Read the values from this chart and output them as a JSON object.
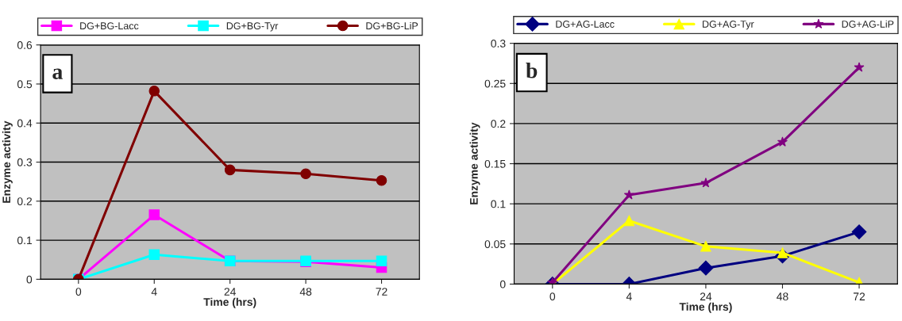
{
  "chart_data": [
    {
      "type": "line",
      "xlabel": "Time (hrs)",
      "ylabel": "Enzyme activity",
      "categories": [
        "0",
        "4",
        "24",
        "48",
        "72"
      ],
      "ylim": [
        0,
        0.6
      ],
      "yticks": [
        0,
        0.1,
        0.2,
        0.3,
        0.4,
        0.5,
        0.6
      ],
      "grid": "y",
      "legend": "top",
      "annotations": [
        "a"
      ],
      "series": [
        {
          "name": "DG+BG-Lacc",
          "color": "#ff00ff",
          "marker": "square",
          "values": [
            0,
            0.165,
            0.047,
            0.045,
            0.03
          ]
        },
        {
          "name": "DG+BG-Tyr",
          "color": "#00ffff",
          "marker": "square",
          "values": [
            0,
            0.063,
            0.047,
            0.047,
            0.047
          ]
        },
        {
          "name": "DG+BG-LiP",
          "color": "#800000",
          "marker": "circle",
          "values": [
            0,
            0.482,
            0.28,
            0.27,
            0.253
          ]
        }
      ]
    },
    {
      "type": "line",
      "xlabel": "Time (hrs)",
      "ylabel": "Enzyme activity",
      "categories": [
        "0",
        "4",
        "24",
        "48",
        "72"
      ],
      "ylim": [
        0,
        0.3
      ],
      "yticks": [
        0,
        0.05,
        0.1,
        0.15,
        0.2,
        0.25,
        0.3
      ],
      "grid": "y",
      "legend": "top",
      "annotations": [
        "b"
      ],
      "series": [
        {
          "name": "DG+AG-Lacc",
          "color": "#000080",
          "marker": "diamond",
          "values": [
            0,
            0,
            0.02,
            0.035,
            0.065
          ]
        },
        {
          "name": "DG+AG-Tyr",
          "color": "#ffff00",
          "marker": "triangle",
          "values": [
            0,
            0.079,
            0.047,
            0.039,
            0.002
          ]
        },
        {
          "name": "DG+AG-LiP",
          "color": "#800080",
          "marker": "star",
          "values": [
            0.002,
            0.111,
            0.126,
            0.177,
            0.27
          ]
        }
      ]
    }
  ]
}
